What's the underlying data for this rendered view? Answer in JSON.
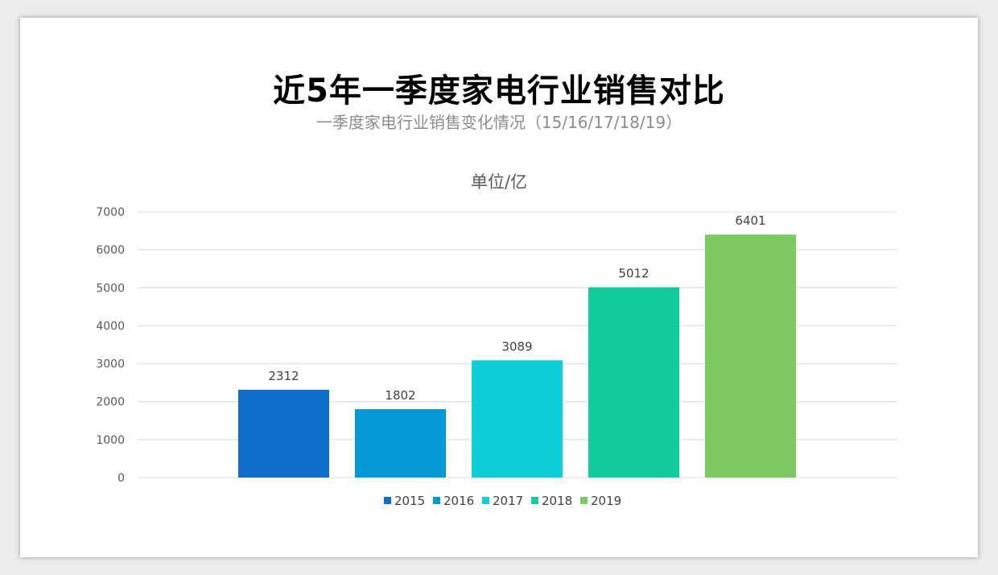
{
  "title": "近5年一季度家电行业销售对比",
  "subtitle": "一季度家电行业销售变化情况（15/16/17/18/19）",
  "chart_data": {
    "type": "bar",
    "title": "单位/亿",
    "xlabel": "",
    "ylabel": "",
    "categories": [
      "2015",
      "2016",
      "2017",
      "2018",
      "2019"
    ],
    "values": [
      2312,
      1802,
      3089,
      5012,
      6401
    ],
    "colors": [
      "#0f6ec9",
      "#0399d6",
      "#0ccfd9",
      "#11cc9c",
      "#7dc962"
    ],
    "ylim": [
      0,
      7000
    ],
    "yticks": [
      0,
      1000,
      2000,
      3000,
      4000,
      5000,
      6000,
      7000
    ],
    "grid": true,
    "legend": "bottom",
    "data_labels": true
  }
}
